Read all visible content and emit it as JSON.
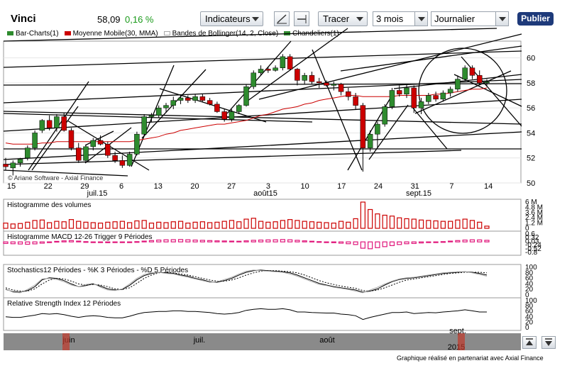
{
  "toolbar": {
    "title": "Vinci",
    "price": "58,09",
    "change": "0,16 %",
    "indicators_label": "Indicateurs",
    "draw_label": "Tracer",
    "period_value": "3 mois",
    "interval_value": "Journalier",
    "publish_label": "Publier",
    "icons": [
      "line-tool-icon",
      "level-tool-icon"
    ]
  },
  "legend": [
    {
      "label": "Bar-Charts(1)",
      "color": "#2e8b2e"
    },
    {
      "label": "Moyenne Mobile(30, MMA)",
      "color": "#cc0000"
    },
    {
      "label": "Bandes de Bollinger(14, 2, Close)",
      "color": "#ffffff"
    },
    {
      "label": "Chandeliers(1)",
      "color": "#2e8b2e"
    }
  ],
  "chart_data": [
    {
      "type": "candlestick",
      "title": "",
      "watermark": "© Ariane Software - Axial Finance",
      "ylim": [
        50,
        61
      ],
      "y_ticks": [
        "50",
        "52",
        "54",
        "56",
        "58",
        "60"
      ],
      "x_day_ticks": [
        "15",
        "22",
        "29",
        "6",
        "13",
        "20",
        "27",
        "3",
        "10",
        "17",
        "24",
        "31",
        "7",
        "14"
      ],
      "x_month_labels": [
        "juil.15",
        "août15",
        "sept.15"
      ],
      "candles": [
        [
          51.5,
          52.0,
          51.0,
          51.3
        ],
        [
          51.2,
          51.8,
          50.6,
          51.6
        ],
        [
          51.6,
          52.0,
          51.3,
          51.9
        ],
        [
          52.0,
          53.0,
          51.8,
          52.8
        ],
        [
          52.8,
          54.2,
          52.6,
          54.0
        ],
        [
          54.2,
          55.1,
          54.0,
          55.0
        ],
        [
          55.0,
          55.4,
          54.2,
          54.4
        ],
        [
          54.4,
          55.5,
          54.1,
          55.3
        ],
        [
          55.3,
          55.6,
          54.1,
          54.2
        ],
        [
          54.2,
          54.4,
          52.6,
          52.8
        ],
        [
          52.8,
          53.2,
          51.6,
          51.8
        ],
        [
          51.8,
          53.0,
          51.6,
          52.9
        ],
        [
          52.9,
          53.6,
          52.6,
          53.4
        ],
        [
          53.4,
          53.8,
          53.0,
          53.1
        ],
        [
          53.1,
          53.3,
          52.0,
          52.2
        ],
        [
          52.2,
          52.5,
          51.6,
          51.8
        ],
        [
          51.8,
          52.2,
          51.2,
          51.4
        ],
        [
          51.4,
          52.5,
          51.3,
          52.3
        ],
        [
          52.3,
          54.1,
          52.2,
          53.9
        ],
        [
          53.9,
          55.5,
          53.8,
          55.3
        ],
        [
          55.3,
          55.6,
          54.9,
          55.4
        ],
        [
          55.4,
          56.2,
          55.2,
          56.0
        ],
        [
          56.0,
          56.4,
          55.6,
          56.2
        ],
        [
          56.2,
          56.9,
          55.9,
          56.6
        ],
        [
          56.6,
          57.0,
          56.3,
          56.8
        ],
        [
          56.8,
          57.0,
          56.4,
          56.6
        ],
        [
          56.6,
          57.1,
          56.4,
          56.9
        ],
        [
          56.9,
          57.1,
          56.5,
          56.6
        ],
        [
          56.6,
          56.8,
          56.2,
          56.3
        ],
        [
          56.3,
          56.5,
          55.6,
          55.7
        ],
        [
          55.7,
          55.9,
          54.9,
          55.1
        ],
        [
          55.1,
          55.9,
          54.9,
          55.7
        ],
        [
          55.7,
          56.3,
          55.5,
          56.2
        ],
        [
          56.2,
          57.9,
          56.1,
          57.7
        ],
        [
          57.7,
          59.0,
          57.5,
          58.8
        ],
        [
          58.8,
          59.4,
          58.6,
          59.1
        ],
        [
          59.1,
          59.3,
          58.8,
          59.0
        ],
        [
          59.0,
          59.4,
          58.9,
          59.2
        ],
        [
          59.2,
          60.3,
          59.0,
          60.1
        ],
        [
          60.1,
          60.3,
          59.0,
          59.1
        ],
        [
          59.1,
          59.2,
          57.8,
          58.2
        ],
        [
          58.2,
          58.8,
          57.9,
          58.6
        ],
        [
          58.6,
          58.9,
          57.9,
          58.1
        ],
        [
          58.1,
          58.4,
          57.6,
          58.0
        ],
        [
          58.0,
          58.2,
          57.7,
          57.8
        ],
        [
          57.8,
          58.1,
          57.4,
          57.9
        ],
        [
          57.9,
          58.0,
          57.0,
          57.3
        ],
        [
          57.3,
          57.6,
          56.6,
          56.9
        ],
        [
          56.9,
          57.2,
          55.9,
          56.2
        ],
        [
          56.2,
          56.4,
          50.9,
          52.8
        ],
        [
          52.8,
          54.2,
          52.5,
          53.9
        ],
        [
          53.9,
          54.9,
          52.8,
          54.7
        ],
        [
          54.7,
          56.3,
          54.5,
          56.1
        ],
        [
          56.1,
          57.6,
          55.9,
          57.4
        ],
        [
          57.4,
          57.8,
          56.9,
          57.1
        ],
        [
          57.1,
          57.9,
          56.8,
          57.6
        ],
        [
          57.6,
          57.8,
          55.6,
          56.0
        ],
        [
          56.0,
          56.8,
          55.5,
          56.5
        ],
        [
          56.5,
          57.2,
          56.3,
          57.0
        ],
        [
          57.0,
          57.3,
          56.5,
          56.7
        ],
        [
          56.7,
          57.4,
          56.5,
          57.2
        ],
        [
          57.2,
          57.7,
          56.9,
          57.5
        ],
        [
          57.5,
          58.6,
          57.3,
          58.3
        ],
        [
          58.3,
          59.4,
          58.2,
          59.2
        ],
        [
          59.2,
          59.4,
          58.3,
          58.6
        ],
        [
          58.6,
          59.0,
          57.8,
          58.0
        ],
        [
          58.0,
          58.3,
          57.7,
          58.09
        ]
      ],
      "moving_average": [
        53.2,
        53.1,
        53.1,
        53.1,
        53.1,
        53.2,
        53.2,
        53.3,
        53.3,
        53.3,
        53.3,
        53.3,
        53.3,
        53.3,
        53.3,
        53.3,
        53.3,
        53.3,
        53.4,
        53.5,
        53.6,
        53.7,
        53.9,
        54.0,
        54.2,
        54.3,
        54.4,
        54.5,
        54.6,
        54.7,
        54.7,
        54.8,
        54.9,
        55.0,
        55.2,
        55.4,
        55.5,
        55.7,
        55.9,
        56.0,
        56.1,
        56.3,
        56.4,
        56.6,
        56.7,
        56.8,
        56.9,
        57.0,
        57.0,
        56.9,
        56.9,
        56.9,
        56.9,
        56.9,
        57.0,
        57.0,
        57.0,
        57.0,
        57.0,
        57.1,
        57.1,
        57.2,
        57.3,
        57.4,
        57.5,
        57.5,
        57.6
      ],
      "colors": {
        "up": "#2e8b2e",
        "down": "#cc0000",
        "ma": "#cc0000"
      }
    },
    {
      "type": "bar",
      "title": "Histogramme des volumes",
      "y_ticks": [
        "6 M",
        "4.8 M",
        "3.6 M",
        "2.4 M",
        "1.2 M",
        "0"
      ],
      "ylim": [
        0,
        6
      ],
      "values": [
        1.2,
        1.0,
        1.1,
        1.4,
        1.8,
        1.9,
        1.3,
        1.6,
        1.5,
        2.0,
        1.6,
        1.4,
        1.3,
        1.2,
        1.4,
        1.5,
        1.6,
        1.3,
        1.7,
        1.8,
        1.2,
        1.4,
        1.3,
        1.5,
        1.6,
        1.2,
        1.4,
        1.5,
        1.3,
        1.4,
        1.6,
        1.8,
        1.5,
        2.1,
        2.3,
        1.6,
        1.4,
        1.5,
        1.8,
        2.0,
        1.8,
        1.6,
        1.5,
        1.4,
        1.3,
        1.2,
        1.6,
        1.4,
        2.2,
        6.0,
        4.3,
        3.3,
        3.0,
        2.8,
        2.4,
        2.2,
        2.1,
        1.9,
        1.8,
        1.7,
        1.6,
        1.6,
        1.9,
        2.1,
        1.8,
        1.4,
        0.5
      ],
      "color": "#cc0000"
    },
    {
      "type": "bar",
      "title": "Histogramme MACD 12-26   Trigger 9 Périodes",
      "y_ticks": [
        "0.6",
        "0.32",
        "0.03",
        "-0.24",
        "-0.52",
        "-0.8"
      ],
      "ylim": [
        -0.8,
        0.6
      ],
      "values": [
        -0.12,
        -0.14,
        -0.16,
        -0.18,
        -0.15,
        -0.1,
        -0.05,
        0.04,
        0.08,
        0.1,
        0.06,
        0.02,
        -0.02,
        -0.04,
        -0.06,
        -0.05,
        -0.04,
        -0.02,
        0.02,
        0.06,
        0.1,
        0.14,
        0.16,
        0.17,
        0.18,
        0.16,
        0.14,
        0.12,
        0.1,
        0.08,
        0.07,
        0.06,
        0.05,
        0.08,
        0.12,
        0.14,
        0.15,
        0.16,
        0.18,
        0.16,
        0.12,
        0.08,
        0.05,
        0.02,
        -0.02,
        -0.06,
        -0.1,
        -0.14,
        -0.2,
        -0.48,
        -0.52,
        -0.44,
        -0.36,
        -0.28,
        -0.2,
        -0.14,
        -0.12,
        -0.08,
        -0.04,
        -0.02,
        0.02,
        0.06,
        0.1,
        0.14,
        0.16,
        0.15,
        0.12
      ],
      "color": "#e0157a"
    },
    {
      "type": "line",
      "title": "Stochastics12 Périodes  -  %K 3 Périodes  -  %D 5 Périodes",
      "y_ticks": [
        "100",
        "80",
        "60",
        "40",
        "20",
        "0"
      ],
      "ylim": [
        0,
        100
      ],
      "series": [
        {
          "style": "solid",
          "values": [
            20,
            12,
            10,
            16,
            30,
            55,
            62,
            60,
            52,
            40,
            30,
            34,
            40,
            32,
            22,
            18,
            20,
            35,
            55,
            70,
            78,
            82,
            80,
            78,
            72,
            68,
            60,
            55,
            48,
            46,
            52,
            60,
            72,
            82,
            88,
            90,
            88,
            86,
            84,
            80,
            72,
            62,
            52,
            42,
            36,
            30,
            26,
            22,
            18,
            10,
            14,
            22,
            36,
            48,
            56,
            60,
            62,
            66,
            70,
            74,
            78,
            80,
            82,
            84,
            82,
            78,
            72
          ]
        },
        {
          "style": "dotted",
          "values": [
            26,
            18,
            14,
            14,
            22,
            40,
            54,
            60,
            58,
            50,
            40,
            36,
            38,
            36,
            30,
            22,
            20,
            26,
            42,
            60,
            72,
            80,
            82,
            80,
            76,
            72,
            66,
            60,
            54,
            50,
            50,
            54,
            62,
            72,
            80,
            86,
            88,
            88,
            86,
            84,
            80,
            72,
            62,
            52,
            44,
            38,
            32,
            28,
            24,
            16,
            14,
            18,
            26,
            36,
            46,
            54,
            58,
            62,
            66,
            70,
            74,
            78,
            80,
            82,
            82,
            82,
            80
          ]
        },
        {
          "style": "grey",
          "values": [
            22,
            10,
            8,
            20,
            36,
            58,
            60,
            56,
            48,
            36,
            30,
            38,
            42,
            28,
            18,
            16,
            22,
            40,
            60,
            74,
            80,
            82,
            78,
            76,
            70,
            64,
            58,
            52,
            46,
            48,
            56,
            64,
            76,
            86,
            90,
            88,
            86,
            84,
            82,
            76,
            68,
            58,
            48,
            38,
            34,
            28,
            24,
            20,
            14,
            8,
            18,
            28,
            40,
            50,
            58,
            62,
            64,
            68,
            72,
            76,
            80,
            82,
            84,
            84,
            80,
            74,
            68
          ]
        }
      ]
    },
    {
      "type": "line",
      "title": "Relative Strength Index 12 Périodes",
      "y_ticks": [
        "100",
        "80",
        "60",
        "40",
        "20",
        "0"
      ],
      "ylim": [
        0,
        100
      ],
      "series": [
        {
          "values": [
            40,
            38,
            38,
            42,
            46,
            52,
            50,
            52,
            48,
            42,
            38,
            42,
            44,
            42,
            38,
            36,
            36,
            42,
            50,
            56,
            58,
            60,
            60,
            62,
            62,
            60,
            60,
            58,
            56,
            52,
            50,
            52,
            56,
            64,
            68,
            70,
            68,
            68,
            70,
            66,
            58,
            58,
            56,
            55,
            54,
            54,
            50,
            48,
            44,
            30,
            38,
            44,
            50,
            56,
            56,
            58,
            52,
            54,
            56,
            55,
            58,
            60,
            62,
            66,
            62,
            58,
            58
          ]
        }
      ]
    }
  ],
  "timeline": {
    "labels": [
      "juin",
      "juil.",
      "août",
      "sept.",
      "2015"
    ]
  },
  "footer": {
    "text": "Graphique réalisé en partenariat avec Axial Finance"
  }
}
